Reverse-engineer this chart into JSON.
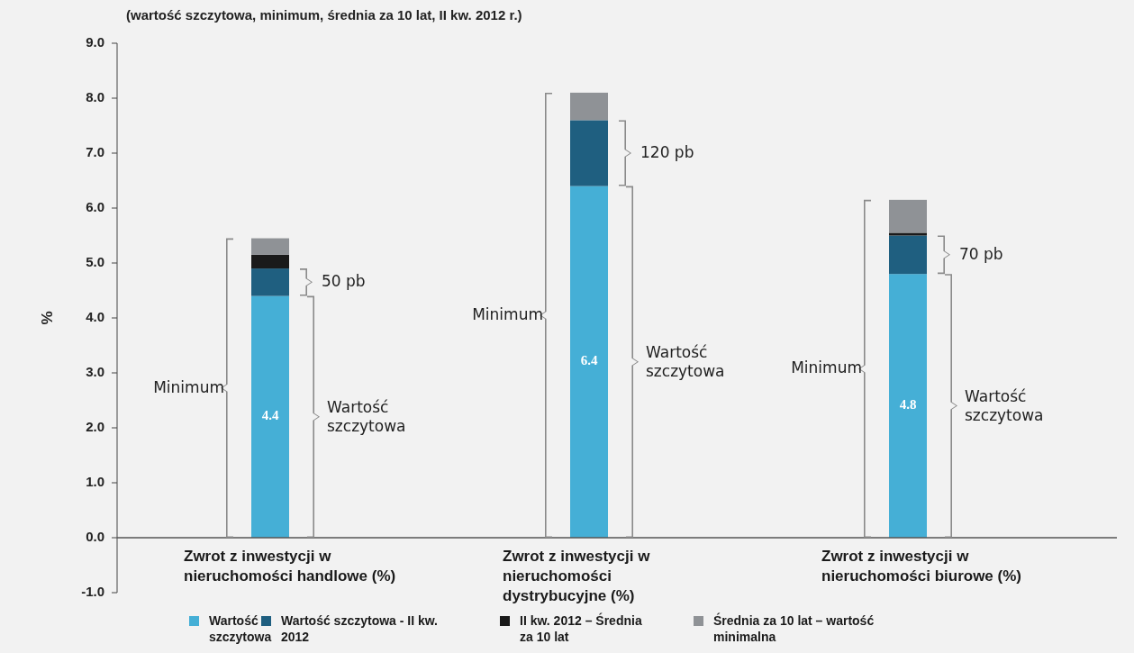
{
  "chart_data": {
    "type": "bar",
    "stacked": true,
    "title": "(wartość szczytowa, minimum, średnia za 10 lat, II kw. 2012 r.)",
    "ylabel": "%",
    "categories": [
      "Zwrot z inwestycji w nieruchomości handlowe (%)",
      "Zwrot z inwestycji w nieruchomości dystrybucyjne (%)",
      "Zwrot z inwestycji  w nieruchomości biurowe (%)"
    ],
    "series": [
      {
        "name": "Wartość szczytowa",
        "color": "#45afd6",
        "values": [
          4.4,
          6.4,
          4.8
        ],
        "value_labels": [
          "4.4",
          "6.4",
          "4.8"
        ]
      },
      {
        "name": "Wartość  szczytowa - II kw. 2012",
        "color": "#1f5f80",
        "values": [
          0.5,
          1.2,
          0.7
        ]
      },
      {
        "name": "II kw. 2012 – Średnia za 10 lat",
        "color": "#1a1a1a",
        "values": [
          0.25,
          0,
          0.05
        ]
      },
      {
        "name": "Średnia za 10 lat – wartość minimalna",
        "color": "#8f9296",
        "values": [
          0.3,
          0.5,
          0.6
        ]
      }
    ],
    "ylim": [
      -1,
      9
    ],
    "yticks": [
      {
        "value": -1,
        "label": "-1.0"
      },
      {
        "value": 0,
        "label": "0.0"
      },
      {
        "value": 1,
        "label": "1.0"
      },
      {
        "value": 2,
        "label": "2.0"
      },
      {
        "value": 3,
        "label": "3.0"
      },
      {
        "value": 4,
        "label": "4.0"
      },
      {
        "value": 5,
        "label": "5.0"
      },
      {
        "value": 6,
        "label": "6.0"
      },
      {
        "value": 7,
        "label": "7.0"
      },
      {
        "value": 8,
        "label": "8.0"
      },
      {
        "value": 9,
        "label": "9.0"
      }
    ],
    "grid": false,
    "legend": "bottom",
    "annotations": [
      "50 pb",
      "Minimum",
      "Wartość szczytowa",
      "120 pb",
      "Minimum",
      "Wartość szczytowa",
      "70 pb",
      "Minimum",
      "Wartość szczytowa"
    ]
  }
}
